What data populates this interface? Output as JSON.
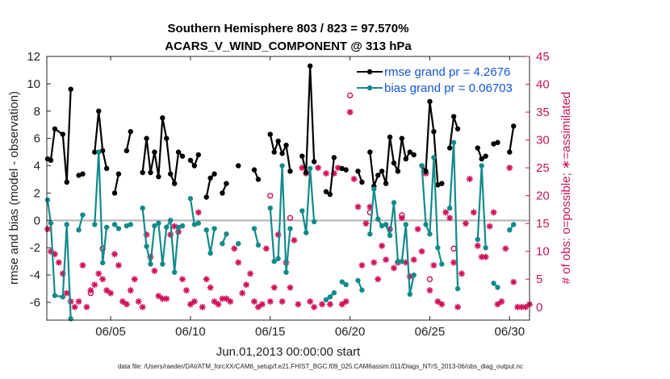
{
  "chart_data": {
    "type": "line",
    "title": "Southern Hemisphere 803 / 823 = 97.570%",
    "subtitle": "ACARS_V_WIND_COMPONENT @ 313 hPa",
    "xlabel": "Jun.01,2013 00:00:00 start",
    "ylabel": "rmse and bias (model - observation)",
    "ylabel_right": "# of obs: o=possible; ∗=assimilated",
    "x_range": [
      1.0,
      31.25
    ],
    "ylim": [
      -7.3,
      12
    ],
    "ylim_right": [
      -2.35,
      45
    ],
    "x_ticks": [
      5,
      10,
      15,
      20,
      25,
      30
    ],
    "x_tick_labels": [
      "06/05",
      "06/10",
      "06/15",
      "06/20",
      "06/25",
      "06/30"
    ],
    "y_ticks": [
      -6,
      -4,
      -2,
      0,
      2,
      4,
      6,
      8,
      10,
      12
    ],
    "y_tick_labels": [
      "-6",
      "-4",
      "-2",
      "0",
      "2",
      "4",
      "6",
      "8",
      "10",
      "12"
    ],
    "y_ticks_right": [
      0,
      5,
      10,
      15,
      20,
      25,
      30,
      35,
      40,
      45
    ],
    "y_tick_labels_right": [
      "0",
      "5",
      "10",
      "15",
      "20",
      "25",
      "30",
      "35",
      "40",
      "45"
    ],
    "zero_line": 0,
    "legend": [
      {
        "name": "rmse grand pr = 4.2676",
        "color": "#000000"
      },
      {
        "name": "bias grand pr = 0.06703",
        "color": "#138a8a"
      }
    ],
    "colors": {
      "rmse": "#000000",
      "bias": "#138a8a",
      "obs": "#d0105a",
      "zero": "#b0b0b0"
    },
    "series": [
      {
        "name": "rmse",
        "segments": [
          [
            [
              1.05,
              4.5
            ],
            [
              1.25,
              4.4
            ],
            [
              1.5,
              6.7
            ],
            [
              2.0,
              6.3
            ],
            [
              2.25,
              2.8
            ],
            [
              2.5,
              9.6
            ]
          ],
          [
            [
              3.0,
              3.3
            ],
            [
              3.25,
              3.4
            ]
          ],
          [
            [
              4.0,
              5.0
            ],
            [
              4.25,
              8.0
            ],
            [
              4.5,
              5.1
            ],
            [
              4.75,
              3.8
            ]
          ],
          [
            [
              5.25,
              2.0
            ],
            [
              5.5,
              3.4
            ]
          ],
          [
            [
              6.0,
              5.1
            ],
            [
              6.25,
              6.5
            ]
          ],
          [
            [
              7.0,
              3.5
            ],
            [
              7.25,
              6.0
            ],
            [
              7.5,
              3.5
            ],
            [
              7.75,
              5.0
            ],
            [
              8.0,
              3.2
            ],
            [
              8.25,
              7.5
            ],
            [
              8.5,
              6.0
            ],
            [
              8.75,
              3.4
            ],
            [
              9.0,
              2.7
            ],
            [
              9.25,
              5.0
            ],
            [
              9.5,
              4.7
            ]
          ],
          [
            [
              10.0,
              4.4
            ],
            [
              10.25,
              4.0
            ],
            [
              10.5,
              4.8
            ]
          ],
          [
            [
              11.0,
              1.7
            ],
            [
              11.25,
              3.1
            ],
            [
              11.5,
              3.4
            ]
          ],
          [
            [
              12.0,
              2.0
            ],
            [
              12.25,
              2.7
            ]
          ],
          [
            [
              13.0,
              4.0
            ]
          ],
          [
            [
              14.0,
              3.7
            ],
            [
              14.25,
              3.0
            ]
          ],
          [
            [
              15.0,
              6.3
            ],
            [
              15.25,
              5.0
            ],
            [
              15.5,
              5.8
            ],
            [
              15.75,
              4.9
            ],
            [
              16.0,
              5.5
            ],
            [
              16.25,
              3.6
            ]
          ],
          [
            [
              17.0,
              4.7
            ],
            [
              17.25,
              3.5
            ],
            [
              17.5,
              11.3
            ],
            [
              17.75,
              4.3
            ]
          ],
          [
            [
              18.5,
              2.1
            ],
            [
              18.75,
              1.9
            ],
            [
              19.0,
              4.6
            ]
          ],
          [
            [
              19.5,
              3.8
            ],
            [
              19.75,
              3.7
            ]
          ],
          [
            [
              20.5,
              3.6
            ],
            [
              20.75,
              2.8
            ]
          ],
          [
            [
              21.25,
              5.0
            ],
            [
              21.5,
              2.5
            ],
            [
              21.75,
              3.3
            ],
            [
              22.0,
              3.6
            ],
            [
              22.25,
              2.7
            ],
            [
              22.5,
              6.1
            ],
            [
              22.75,
              4.2
            ],
            [
              23.0,
              3.6
            ],
            [
              23.25,
              6.0
            ],
            [
              23.5,
              4.5
            ],
            [
              23.75,
              5.0
            ],
            [
              24.0,
              4.8
            ]
          ],
          [
            [
              24.5,
              4.0
            ],
            [
              24.75,
              3.6
            ],
            [
              25.0,
              8.7
            ],
            [
              25.25,
              6.5
            ],
            [
              25.5,
              2.6
            ],
            [
              25.75,
              2.7
            ]
          ],
          [
            [
              26.25,
              5.3
            ],
            [
              26.5,
              7.6
            ],
            [
              26.75,
              6.7
            ]
          ],
          [
            [
              28.0,
              5.3
            ],
            [
              28.25,
              4.5
            ],
            [
              28.5,
              4.7
            ]
          ],
          [
            [
              29.0,
              5.6
            ],
            [
              29.25,
              5.7
            ]
          ],
          [
            [
              30.0,
              5.0
            ],
            [
              30.25,
              6.9
            ]
          ]
        ]
      },
      {
        "name": "bias",
        "segments": [
          [
            [
              1.05,
              1.5
            ],
            [
              1.25,
              -0.2
            ],
            [
              1.5,
              -5.5
            ],
            [
              2.0,
              -5.6
            ],
            [
              2.25,
              -0.3
            ],
            [
              2.5,
              -7.2
            ]
          ],
          [
            [
              3.0,
              -0.7
            ],
            [
              3.25,
              0.4
            ]
          ],
          [
            [
              4.0,
              -0.3
            ],
            [
              4.25,
              5.0
            ],
            [
              4.5,
              -3.1
            ],
            [
              4.75,
              -0.5
            ]
          ],
          [
            [
              5.25,
              -0.3
            ],
            [
              5.5,
              -0.6
            ]
          ],
          [
            [
              6.0,
              -0.4
            ],
            [
              6.25,
              -0.3
            ]
          ],
          [
            [
              7.0,
              0.9
            ],
            [
              7.25,
              -1.9
            ],
            [
              7.5,
              -3.2
            ],
            [
              7.75,
              -0.4
            ],
            [
              8.0,
              -0.2
            ],
            [
              8.25,
              -3.2
            ],
            [
              8.5,
              -0.5
            ],
            [
              8.75,
              0.0
            ],
            [
              9.0,
              -3.8
            ],
            [
              9.25,
              -0.5
            ],
            [
              9.5,
              -0.4
            ]
          ],
          [
            [
              10.0,
              1.6
            ],
            [
              10.25,
              -0.3
            ],
            [
              10.5,
              -0.2
            ]
          ],
          [
            [
              11.0,
              -0.7
            ],
            [
              11.25,
              -2.4
            ],
            [
              11.5,
              -0.6
            ]
          ],
          [
            [
              12.0,
              -1.7
            ],
            [
              12.25,
              -1.0
            ]
          ],
          [
            [
              13.0,
              -1.7
            ]
          ],
          [
            [
              14.0,
              -0.6
            ],
            [
              14.25,
              -1.8
            ]
          ],
          [
            [
              15.0,
              0.9
            ],
            [
              15.25,
              -3.0
            ],
            [
              15.5,
              -2.8
            ],
            [
              15.75,
              4.0
            ],
            [
              16.0,
              -3.8
            ],
            [
              16.25,
              -0.6
            ]
          ],
          [
            [
              17.0,
              0.7
            ],
            [
              17.25,
              -0.9
            ],
            [
              17.5,
              3.8
            ],
            [
              17.75,
              -0.1
            ]
          ],
          [
            [
              18.5,
              -5.8
            ],
            [
              18.75,
              -5.6
            ],
            [
              19.0,
              -5.3
            ]
          ],
          [
            [
              19.5,
              -4.5
            ],
            [
              19.75,
              -4.7
            ]
          ],
          [
            [
              20.5,
              -4.4
            ],
            [
              20.75,
              -5.1
            ]
          ],
          [
            [
              21.25,
              -1.0
            ],
            [
              21.5,
              2.3
            ],
            [
              21.75,
              0.1
            ],
            [
              22.0,
              -0.4
            ],
            [
              22.25,
              -0.3
            ],
            [
              22.5,
              -1.1
            ],
            [
              22.75,
              1.3
            ],
            [
              23.0,
              -3.0
            ],
            [
              23.25,
              -3.0
            ],
            [
              23.5,
              -0.3
            ],
            [
              23.75,
              -5.4
            ],
            [
              24.0,
              -4.0
            ]
          ],
          [
            [
              24.5,
              4.0
            ],
            [
              24.75,
              -0.3
            ],
            [
              25.0,
              -1.0
            ],
            [
              25.25,
              4.6
            ],
            [
              25.5,
              -2.0
            ],
            [
              25.75,
              -3.2
            ]
          ],
          [
            [
              26.25,
              0.9
            ],
            [
              26.5,
              5.7
            ],
            [
              26.75,
              -5.0
            ]
          ],
          [
            [
              28.0,
              -1.4
            ],
            [
              28.25,
              4.0
            ],
            [
              28.5,
              -2.0
            ]
          ],
          [
            [
              29.0,
              -4.6
            ],
            [
              29.25,
              -4.9
            ]
          ],
          [
            [
              30.0,
              -0.7
            ],
            [
              30.25,
              -0.3
            ]
          ]
        ]
      }
    ],
    "obs_assimilated": [
      [
        1.05,
        14.0
      ],
      [
        1.25,
        10.0
      ],
      [
        1.5,
        9.5
      ],
      [
        1.75,
        8.0
      ],
      [
        2.0,
        6.0
      ],
      [
        2.25,
        2.5
      ],
      [
        2.5,
        1.0
      ],
      [
        2.75,
        0.0
      ],
      [
        3.0,
        1.0
      ],
      [
        3.25,
        7.5
      ],
      [
        3.5,
        0.0
      ],
      [
        3.75,
        3.0
      ],
      [
        4.0,
        4.0
      ],
      [
        4.25,
        6.0
      ],
      [
        4.5,
        5.0
      ],
      [
        4.75,
        3.0
      ],
      [
        5.0,
        2.5
      ],
      [
        5.25,
        9.5
      ],
      [
        5.5,
        7.5
      ],
      [
        5.75,
        1.0
      ],
      [
        6.0,
        0.5
      ],
      [
        6.25,
        3.0
      ],
      [
        6.5,
        5.0
      ],
      [
        6.75,
        1.0
      ],
      [
        7.0,
        0.0
      ],
      [
        7.25,
        13.0
      ],
      [
        7.5,
        9.0
      ],
      [
        7.75,
        6.5
      ],
      [
        8.0,
        2.0
      ],
      [
        8.25,
        1.5
      ],
      [
        8.5,
        1.5
      ],
      [
        8.75,
        13.0
      ],
      [
        9.0,
        14.5
      ],
      [
        9.25,
        13.5
      ],
      [
        9.5,
        5.0
      ],
      [
        9.75,
        3.0
      ],
      [
        10.0,
        0.5
      ],
      [
        10.25,
        1.0
      ],
      [
        10.5,
        17.0
      ],
      [
        10.75,
        0.0
      ],
      [
        11.0,
        5.0
      ],
      [
        11.25,
        3.5
      ],
      [
        11.5,
        1.0
      ],
      [
        11.75,
        0.5
      ],
      [
        12.0,
        1.5
      ],
      [
        12.25,
        1.5
      ],
      [
        12.5,
        1.0
      ],
      [
        12.75,
        10.5
      ],
      [
        13.0,
        8.0
      ],
      [
        13.25,
        2.5
      ],
      [
        13.5,
        4.0
      ],
      [
        13.75,
        6.0
      ],
      [
        14.0,
        1.0
      ],
      [
        14.25,
        0.0
      ],
      [
        14.5,
        0.5
      ],
      [
        14.75,
        10.5
      ],
      [
        15.0,
        1.0
      ],
      [
        15.25,
        3.5
      ],
      [
        15.5,
        13.0
      ],
      [
        15.75,
        1.0
      ],
      [
        16.0,
        8.0
      ],
      [
        16.25,
        3.5
      ],
      [
        16.5,
        12.0
      ],
      [
        16.75,
        0.5
      ],
      [
        17.0,
        25.0
      ],
      [
        17.25,
        24.0
      ],
      [
        17.5,
        1.0
      ],
      [
        17.75,
        0.0
      ],
      [
        18.0,
        25.0
      ],
      [
        18.25,
        0.5
      ],
      [
        18.5,
        24.0
      ],
      [
        18.75,
        0.5
      ],
      [
        19.0,
        24.0
      ],
      [
        19.25,
        25.0
      ],
      [
        19.5,
        0.5
      ],
      [
        19.75,
        1.0
      ],
      [
        20.0,
        35.0
      ],
      [
        20.25,
        23.0
      ],
      [
        20.5,
        18.0
      ],
      [
        20.75,
        7.5
      ],
      [
        21.0,
        15.0
      ],
      [
        21.25,
        18.0
      ],
      [
        21.5,
        8.0
      ],
      [
        21.75,
        5.0
      ],
      [
        22.0,
        11.0
      ],
      [
        22.25,
        8.5
      ],
      [
        22.5,
        14.0
      ],
      [
        22.75,
        7.0
      ],
      [
        23.0,
        8.0
      ],
      [
        23.25,
        16.0
      ],
      [
        23.5,
        8.0
      ],
      [
        23.75,
        5.5
      ],
      [
        24.0,
        8.5
      ],
      [
        24.25,
        14.0
      ],
      [
        24.5,
        10.0
      ],
      [
        24.75,
        24.0
      ],
      [
        25.0,
        3.0
      ],
      [
        25.25,
        7.5
      ],
      [
        25.5,
        1.0
      ],
      [
        25.75,
        0.5
      ],
      [
        26.0,
        17.0
      ],
      [
        26.25,
        16.0
      ],
      [
        26.5,
        8.0
      ],
      [
        26.75,
        0.0
      ],
      [
        27.0,
        6.0
      ],
      [
        27.25,
        15.0
      ],
      [
        27.5,
        23.0
      ],
      [
        27.75,
        17.0
      ],
      [
        28.0,
        11.0
      ],
      [
        28.25,
        9.0
      ],
      [
        28.5,
        9.0
      ],
      [
        28.75,
        14.5
      ],
      [
        29.0,
        17.0
      ],
      [
        29.25,
        0.5
      ],
      [
        29.5,
        1.0
      ],
      [
        29.75,
        10.5
      ],
      [
        30.0,
        25.0
      ],
      [
        30.25,
        4.5
      ],
      [
        30.5,
        0.0
      ],
      [
        30.75,
        0.0
      ],
      [
        31.0,
        0.0
      ],
      [
        31.25,
        0.5
      ]
    ],
    "obs_possible_extra": [
      [
        4.5,
        10.5
      ],
      [
        3.75,
        2.5
      ],
      [
        15.0,
        20.0
      ],
      [
        16.25,
        16.0
      ],
      [
        20.0,
        38.0
      ],
      [
        21.25,
        17.0
      ],
      [
        23.25,
        16.5
      ],
      [
        26.5,
        10.5
      ],
      [
        25.0,
        5.0
      ]
    ]
  },
  "footer": "data file: /Users/raeder/DAI/ATM_forcXX/CAM6_setup/f.e21.FHIST_BGC.f09_025.CAM6assim.011/Diags_NTrS_2013-06/obs_diag_output.nc"
}
